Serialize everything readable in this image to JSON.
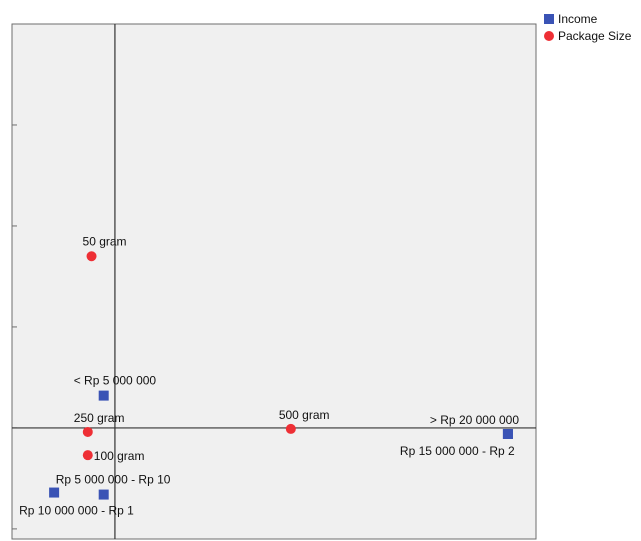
{
  "chart_data": {
    "type": "scatter",
    "title": "",
    "xlabel": "",
    "ylabel": "",
    "xlim": [
      -1.1,
      4.5
    ],
    "ylim": [
      -1.1,
      4.0
    ],
    "grid": false,
    "legend_position": "top-right",
    "series": [
      {
        "name": "Income",
        "marker": "square",
        "color": "#3a53b5",
        "points": [
          {
            "x": -0.12,
            "y": 0.32,
            "label": "< Rp 5 000 000"
          },
          {
            "x": 4.2,
            "y": -0.06,
            "label": "> Rp 20 000 000"
          },
          {
            "x": -0.12,
            "y": -0.66,
            "label": "Rp 5 000 000 - Rp 10"
          },
          {
            "x": -0.65,
            "y": -0.64,
            "label": "Rp 10 000 000 - Rp 1"
          },
          {
            "x": 4.2,
            "y": -0.06,
            "label": "Rp 15 000 000 - Rp 2"
          }
        ]
      },
      {
        "name": "Package Size",
        "marker": "circle",
        "color": "#ee2f35",
        "points": [
          {
            "x": -0.25,
            "y": 1.7,
            "label": "50 gram"
          },
          {
            "x": -0.29,
            "y": -0.04,
            "label": "250 gram"
          },
          {
            "x": 1.88,
            "y": -0.01,
            "label": "500 gram"
          },
          {
            "x": -0.29,
            "y": -0.27,
            "label": "100 gram"
          }
        ]
      }
    ]
  }
}
